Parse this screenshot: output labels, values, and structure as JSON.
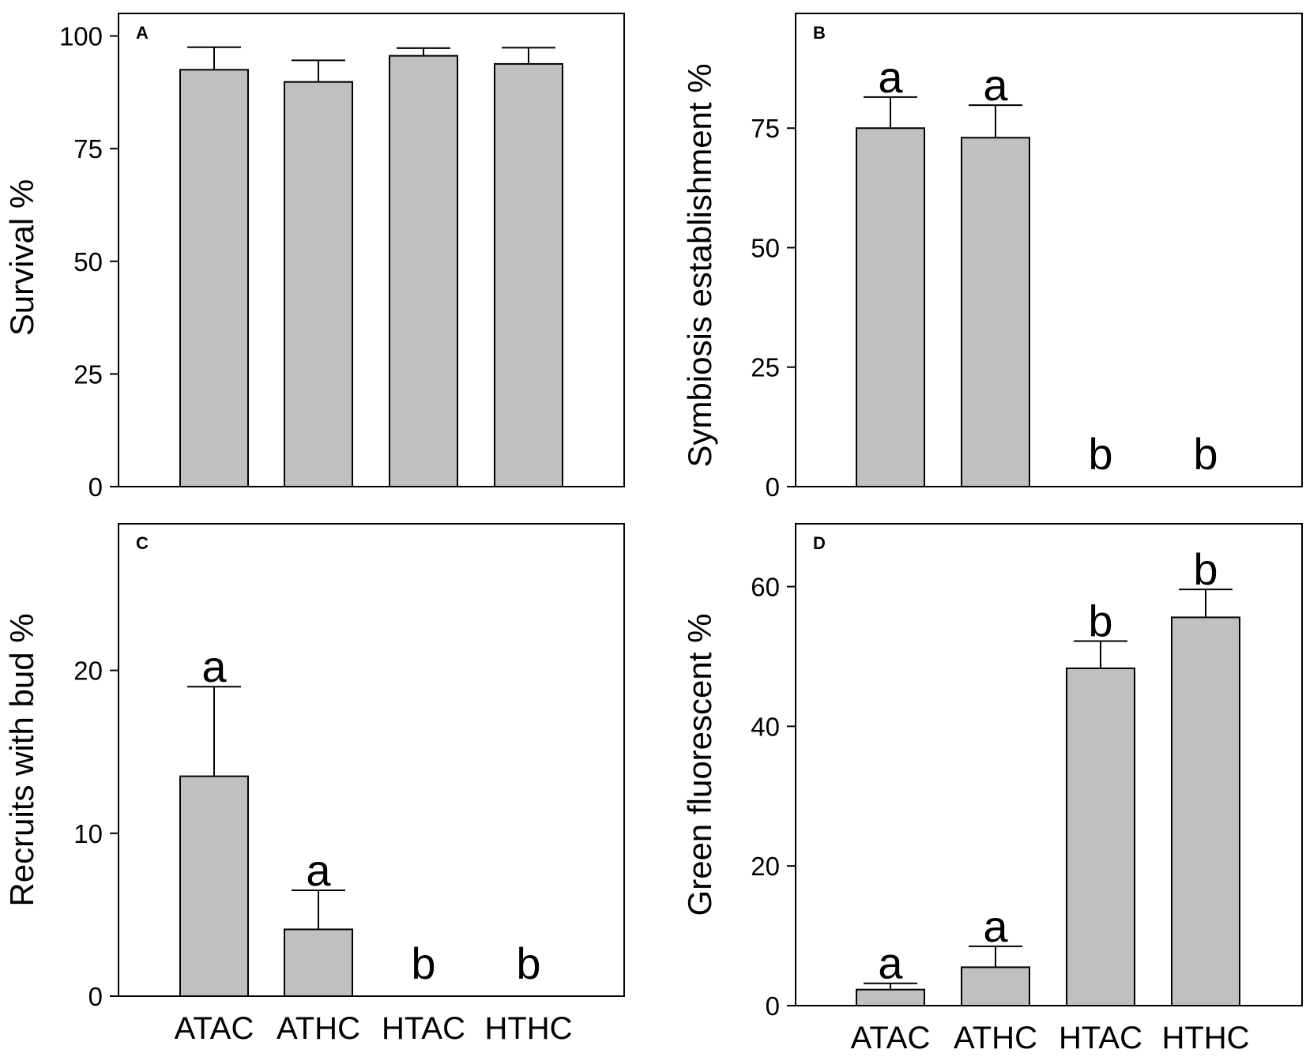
{
  "figure": {
    "background": "#ffffff",
    "bar_fill": "#c0c0c0",
    "stroke": "#000000"
  },
  "chart_data": [
    {
      "id": "A",
      "type": "bar",
      "panel_label": "A",
      "ylabel": "Survival %",
      "xlabel": "",
      "categories": [
        "ATAC",
        "ATHC",
        "HTAC",
        "HTHC"
      ],
      "show_category_labels": false,
      "values": [
        92.5,
        89.8,
        95.6,
        93.8
      ],
      "errors": [
        5.0,
        4.8,
        1.7,
        3.6
      ],
      "sig_letters": [
        "",
        "",
        "",
        ""
      ],
      "ylim": [
        0,
        105
      ],
      "yticks": [
        0,
        25,
        50,
        75,
        100
      ]
    },
    {
      "id": "B",
      "type": "bar",
      "panel_label": "B",
      "ylabel": "Symbiosis establishment %",
      "xlabel": "",
      "categories": [
        "ATAC",
        "ATHC",
        "HTAC",
        "HTHC"
      ],
      "show_category_labels": false,
      "values": [
        75,
        73,
        0,
        0
      ],
      "errors": [
        6.5,
        6.8,
        0,
        0
      ],
      "sig_letters": [
        "a",
        "a",
        "b",
        "b"
      ],
      "ylim": [
        0,
        99
      ],
      "yticks": [
        0,
        25,
        50,
        75
      ]
    },
    {
      "id": "C",
      "type": "bar",
      "panel_label": "C",
      "ylabel": "Recruits with bud %",
      "xlabel": "",
      "categories": [
        "ATAC",
        "ATHC",
        "HTAC",
        "HTHC"
      ],
      "show_category_labels": true,
      "values": [
        13.5,
        4.1,
        0,
        0
      ],
      "errors": [
        5.5,
        2.4,
        0,
        0
      ],
      "sig_letters": [
        "a",
        "a",
        "b",
        "b"
      ],
      "ylim": [
        0,
        29
      ],
      "yticks": [
        0,
        10,
        20
      ]
    },
    {
      "id": "D",
      "type": "bar",
      "panel_label": "D",
      "ylabel": "Green fluorescent %",
      "xlabel": "",
      "categories": [
        "ATAC",
        "ATHC",
        "HTAC",
        "HTHC"
      ],
      "show_category_labels": true,
      "values": [
        2.3,
        5.5,
        48.3,
        55.6
      ],
      "errors": [
        0.9,
        3.0,
        3.9,
        4.0
      ],
      "sig_letters": [
        "a",
        "a",
        "b",
        "b"
      ],
      "ylim": [
        0,
        69
      ],
      "yticks": [
        0,
        20,
        40,
        60
      ]
    }
  ]
}
